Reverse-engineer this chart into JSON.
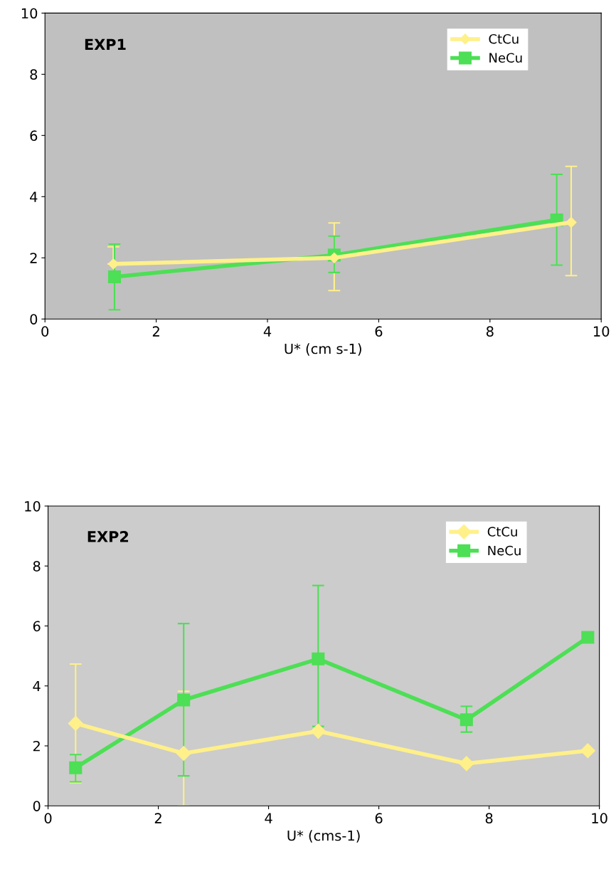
{
  "chart_data": [
    {
      "type": "line",
      "annotations": [
        "EXP1"
      ],
      "xlabel": "U* (cm s-1)",
      "xlim": [
        0,
        10
      ],
      "xticks": [
        0,
        2,
        4,
        6,
        8,
        10
      ],
      "ylim": [
        0,
        10
      ],
      "yticks": [
        0,
        2,
        4,
        6,
        8,
        10
      ],
      "grid": false,
      "legend": "top right",
      "series": [
        {
          "name": "CtCu",
          "color": "#fff08a",
          "marker": "diamond",
          "x": [
            1.23,
            5.2,
            9.46
          ],
          "values": [
            1.8,
            2.0,
            3.16
          ],
          "errors": [
            [
              1.8,
              2.36
            ],
            [
              0.93,
              3.14
            ],
            [
              1.42,
              4.99
            ]
          ]
        },
        {
          "name": "NeCu",
          "color": "#4ddf55",
          "marker": "square",
          "x": [
            1.25,
            5.2,
            9.2
          ],
          "values": [
            1.38,
            2.09,
            3.24
          ],
          "errors": [
            [
              0.3,
              2.45
            ],
            [
              1.52,
              2.71
            ],
            [
              1.76,
              4.73
            ]
          ]
        }
      ]
    },
    {
      "type": "line",
      "annotations": [
        "EXP2"
      ],
      "xlabel": "U* (cms-1)",
      "xlim": [
        0,
        10
      ],
      "xticks": [
        0,
        2,
        4,
        6,
        8,
        10
      ],
      "ylim": [
        0,
        10
      ],
      "yticks": [
        0,
        2,
        4,
        6,
        8,
        10
      ],
      "grid": false,
      "legend": "top right",
      "series": [
        {
          "name": "CtCu",
          "color": "#fff08a",
          "marker": "diamond",
          "x": [
            0.5,
            2.46,
            4.9,
            7.59,
            9.79
          ],
          "values": [
            2.75,
            1.75,
            2.49,
            1.41,
            1.84
          ],
          "errors": [
            [
              0.77,
              4.73
            ],
            [
              0,
              3.82
            ],
            null,
            null,
            null
          ]
        },
        {
          "name": "NeCu",
          "color": "#4ddf55",
          "marker": "square",
          "x": [
            0.5,
            2.46,
            4.9,
            7.59,
            9.79
          ],
          "values": [
            1.27,
            3.53,
            4.9,
            2.87,
            5.62
          ],
          "errors": [
            [
              0.8,
              1.71
            ],
            [
              1.0,
              6.08
            ],
            [
              2.65,
              7.35
            ],
            [
              2.46,
              3.32
            ],
            null
          ]
        }
      ]
    }
  ]
}
